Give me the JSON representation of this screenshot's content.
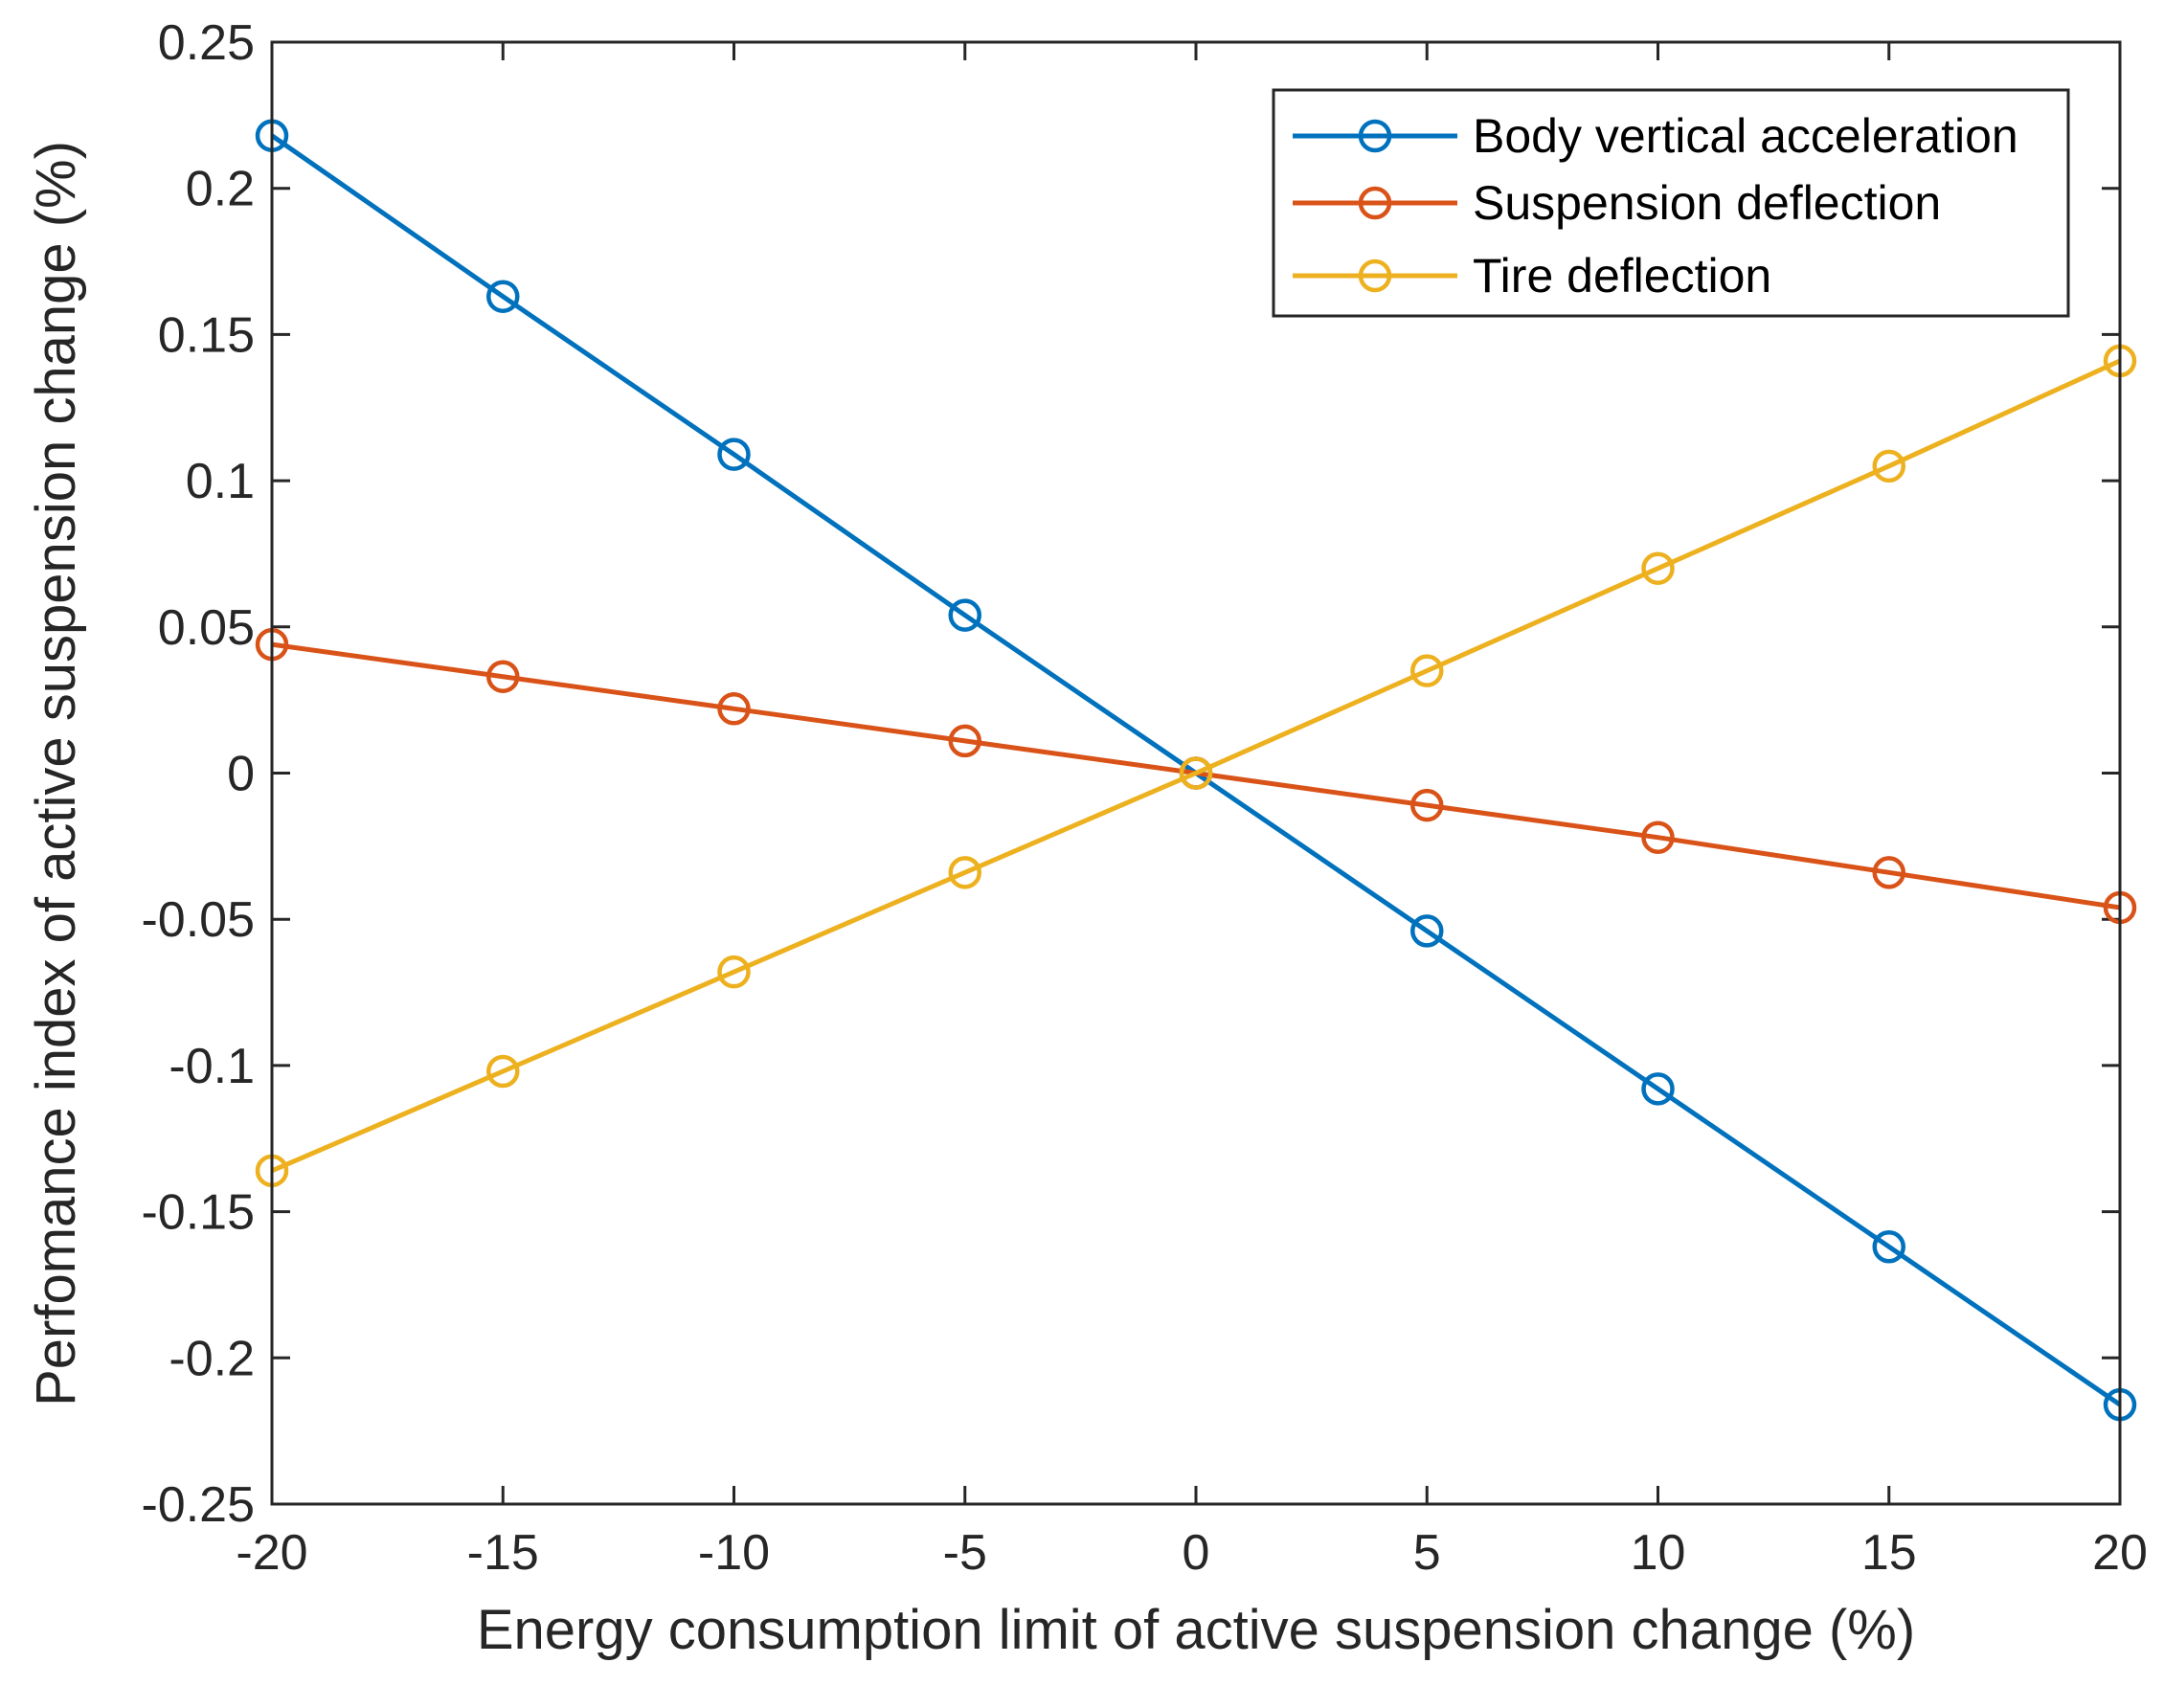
{
  "chart_data": {
    "type": "line",
    "title": "",
    "xlabel": "Energy consumption limit of active suspension change (%)",
    "ylabel": "Perfomance index of active suspension change (%)",
    "x": [
      -20,
      -15,
      -10,
      -5,
      0,
      5,
      10,
      15,
      20
    ],
    "xlim": [
      -20,
      20
    ],
    "ylim": [
      -0.25,
      0.25
    ],
    "x_ticks": [
      -20,
      -15,
      -10,
      -5,
      0,
      5,
      10,
      15,
      20
    ],
    "x_tick_labels": [
      "-20",
      "-15",
      "-10",
      "-5",
      "0",
      "5",
      "10",
      "15",
      "20"
    ],
    "y_ticks": [
      -0.25,
      -0.2,
      -0.15,
      -0.1,
      -0.05,
      0,
      0.05,
      0.1,
      0.15,
      0.2,
      0.25
    ],
    "y_tick_labels": [
      "-0.25",
      "-0.2",
      "-0.15",
      "-0.1",
      "-0.05",
      "0",
      "0.05",
      "0.1",
      "0.15",
      "0.2",
      "0.25"
    ],
    "grid": false,
    "legend_position": "top-right",
    "series": [
      {
        "name": "Body vertical acceleration",
        "color": "#0072BD",
        "marker": "circle",
        "values": [
          0.218,
          0.163,
          0.109,
          0.054,
          0,
          -0.054,
          -0.108,
          -0.162,
          -0.216
        ]
      },
      {
        "name": "Suspension deflection",
        "color": "#D95319",
        "marker": "circle",
        "values": [
          0.044,
          0.033,
          0.022,
          0.011,
          0,
          -0.011,
          -0.022,
          -0.034,
          -0.046
        ]
      },
      {
        "name": "Tire deflection",
        "color": "#EDB120",
        "marker": "circle",
        "values": [
          -0.136,
          -0.102,
          -0.068,
          -0.034,
          0,
          0.035,
          0.07,
          0.105,
          0.141
        ]
      }
    ]
  }
}
